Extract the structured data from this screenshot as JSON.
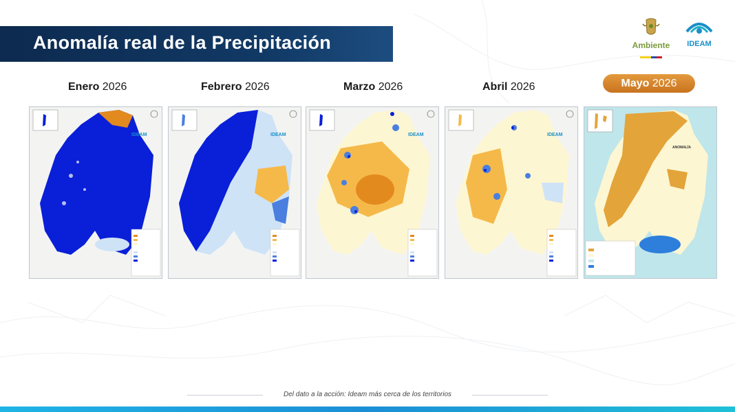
{
  "header": {
    "title": "Anomalía real de la Precipitación",
    "logo_ambiente": "Ambiente",
    "logo_ideam": "IDEAM"
  },
  "months": [
    {
      "name": "Enero",
      "year": "2026",
      "palette": "very-wet"
    },
    {
      "name": "Febrero",
      "year": "2026",
      "palette": "wet-west"
    },
    {
      "name": "Marzo",
      "year": "2026",
      "palette": "dry-mixed"
    },
    {
      "name": "Abril",
      "year": "2026",
      "palette": "normal-mixed"
    },
    {
      "name": "Mayo",
      "year": "2026",
      "palette": "dry-andes",
      "selected": true
    }
  ],
  "colors": {
    "very_wet": "#0a1fd8",
    "wet": "#4a7fe0",
    "light_wet": "#cfe3f7",
    "normal": "#fdf6d2",
    "dry": "#f5b94a",
    "very_dry": "#e38a1e",
    "accent_orange": "#d9812b",
    "title_navy": "#0d2a4f"
  },
  "footer": {
    "tagline": "Del dato a la acción: Ideam más cerca de los territorios"
  }
}
